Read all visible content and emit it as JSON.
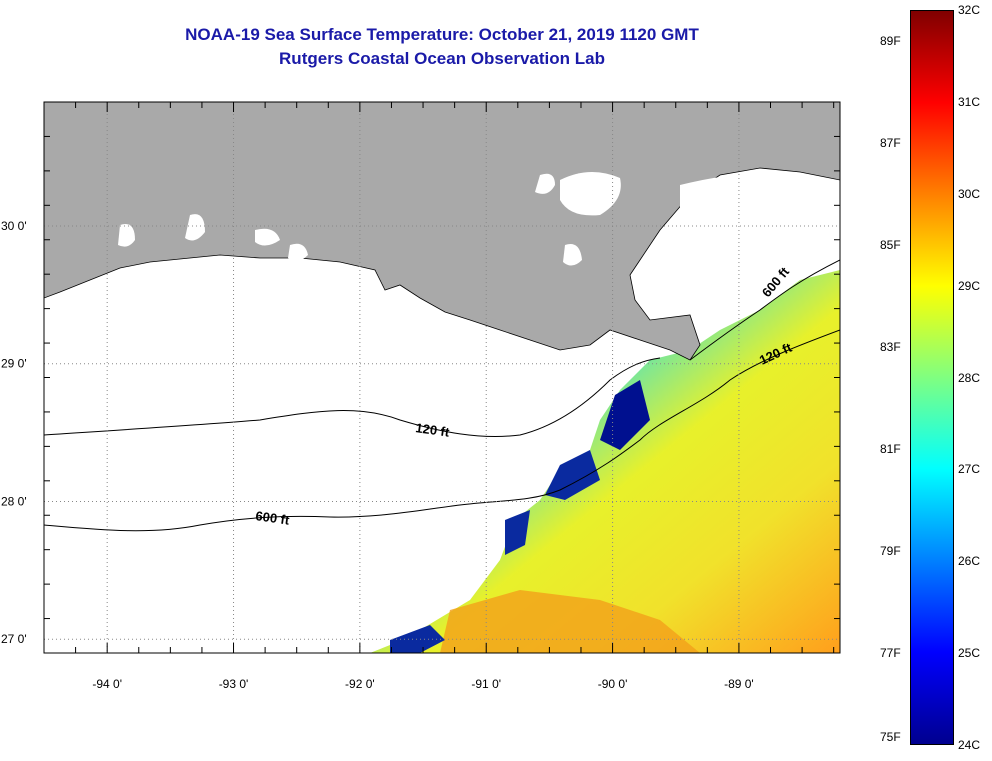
{
  "header": {
    "title": "NOAA-19 Sea Surface Temperature:  October 21, 2019 1120 GMT",
    "subtitle": "Rutgers Coastal Ocean Observation Lab"
  },
  "map": {
    "region": "Northern Gulf of Mexico / Louisiana coast",
    "lon_range": [
      -94.5,
      -88.2
    ],
    "lat_range": [
      26.9,
      30.9
    ],
    "lon_ticks": [
      {
        "value": -94,
        "label": "-94 0'"
      },
      {
        "value": -93,
        "label": "-93 0'"
      },
      {
        "value": -92,
        "label": "-92 0'"
      },
      {
        "value": -91,
        "label": "-91 0'"
      },
      {
        "value": -90,
        "label": "-90 0'"
      },
      {
        "value": -89,
        "label": "-89 0'"
      }
    ],
    "lat_ticks": [
      {
        "value": 30,
        "label": "30 0'"
      },
      {
        "value": 29,
        "label": "29 0'"
      },
      {
        "value": 28,
        "label": "28 0'"
      },
      {
        "value": 27,
        "label": "27 0'"
      }
    ],
    "contour_labels": [
      {
        "text": "120 ft"
      },
      {
        "text": "600 ft"
      },
      {
        "text": "120 ft"
      },
      {
        "text": "600 ft"
      }
    ],
    "colors": {
      "land": "#a9a9a9",
      "ocean_no_data": "#ffffff",
      "grid": "#888888"
    }
  },
  "colorbar": {
    "colormap": "jet",
    "min_c": 24,
    "max_c": 32,
    "celsius_labels": [
      "32C",
      "31C",
      "30C",
      "29C",
      "28C",
      "27C",
      "26C",
      "25C",
      "24C"
    ],
    "fahrenheit_labels": [
      "89F",
      "87F",
      "85F",
      "83F",
      "81F",
      "79F",
      "77F",
      "75F"
    ]
  }
}
